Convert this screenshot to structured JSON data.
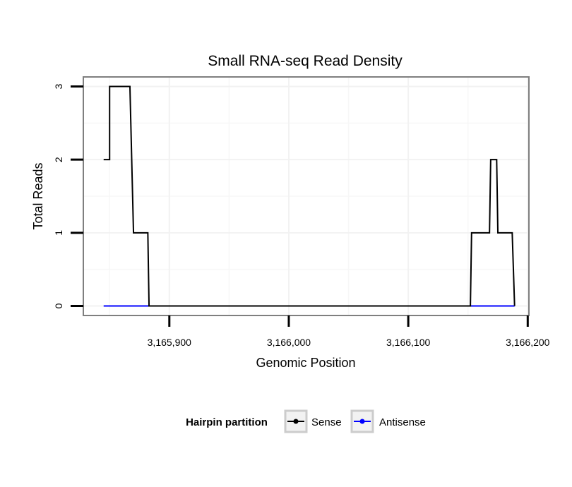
{
  "chart_data": {
    "type": "line",
    "title": "Small RNA-seq Read Density",
    "xlabel": "Genomic Position",
    "ylabel": "Total Reads",
    "xlim": [
      3165828,
      3166201
    ],
    "ylim": [
      -0.13,
      3.13
    ],
    "x_ticks": [
      3165900,
      3166000,
      3166100,
      3166200
    ],
    "x_tick_labels": [
      "3,165,900",
      "3,166,000",
      "3,166,100",
      "3,166,200"
    ],
    "y_ticks": [
      0,
      1,
      2,
      3
    ],
    "y_tick_labels": [
      "0",
      "1",
      "2",
      "3"
    ],
    "grid": true,
    "legend": {
      "title": "Hairpin partition",
      "position": "bottom",
      "entries": [
        "Sense",
        "Antisense"
      ]
    },
    "series": [
      {
        "name": "Sense",
        "color": "#000000",
        "points": [
          [
            3165845,
            2
          ],
          [
            3165850,
            2
          ],
          [
            3165850,
            3
          ],
          [
            3165867,
            3
          ],
          [
            3165870,
            1
          ],
          [
            3165882,
            1
          ],
          [
            3165883,
            0
          ],
          [
            3166152,
            0
          ],
          [
            3166153,
            1
          ],
          [
            3166168,
            1
          ],
          [
            3166169,
            2
          ],
          [
            3166174,
            2
          ],
          [
            3166175,
            1
          ],
          [
            3166187,
            1
          ],
          [
            3166189,
            0
          ]
        ]
      },
      {
        "name": "Antisense",
        "color": "#0000ff",
        "points": [
          [
            3165845,
            0
          ],
          [
            3166189,
            0
          ]
        ]
      }
    ]
  }
}
